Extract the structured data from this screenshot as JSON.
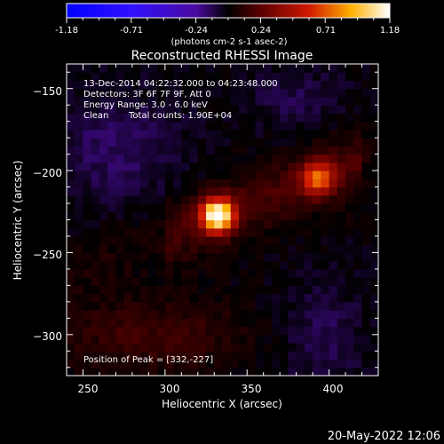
{
  "chart_data": {
    "type": "heatmap",
    "title": "Reconstructed RHESSI Image",
    "xlabel": "Heliocentric X (arcsec)",
    "ylabel": "Heliocentric Y (arcsec)",
    "xlim": [
      240,
      430
    ],
    "ylim": [
      -325,
      -135
    ],
    "x_ticks": [
      250,
      300,
      350,
      400
    ],
    "y_ticks": [
      -150,
      -200,
      -250,
      -300
    ],
    "colorbar": {
      "min": -1.18,
      "max": 1.18,
      "ticks": [
        "-1.18",
        "-0.71",
        "-0.24",
        "0.24",
        "0.71",
        "1.18"
      ],
      "unit_label": "(photons cm-2 s-1 asec-2)",
      "colormap": "blue-purple-red-yellow-white"
    },
    "annotations": {
      "time_range": "13-Dec-2014 04:22:32.000 to 04:23:48.000",
      "detectors": "Detectors: 3F 6F 7F 9F, Att 0",
      "energy": "Energy Range: 3.0 - 6.0 keV",
      "clean": "Clean",
      "counts": "Total counts: 1.90E+04",
      "peak": "Position of Peak = [332,-227]"
    },
    "sources": [
      {
        "x": 332,
        "y": -227,
        "peak": 1.18,
        "width": 7
      },
      {
        "x": 393,
        "y": -204,
        "peak": 0.62,
        "width": 7
      }
    ],
    "grid": false
  },
  "footer": {
    "timestamp": "20-May-2022 12:06"
  }
}
